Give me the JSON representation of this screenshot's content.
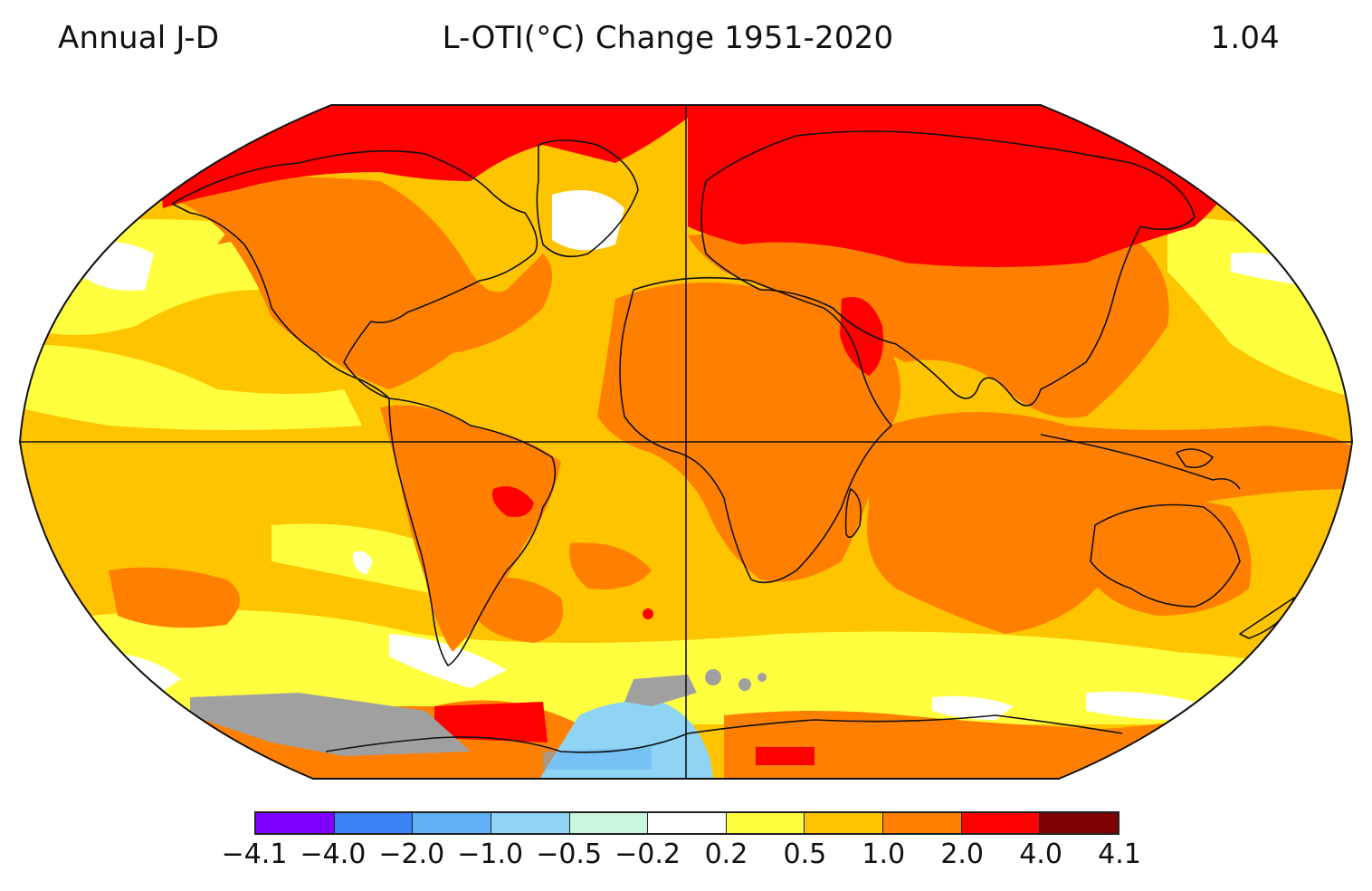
{
  "header": {
    "left": "Annual J-D",
    "center": "L-OTI(°C) Change 1951-2020",
    "right": "1.04"
  },
  "legend": {
    "ticks": [
      "−4.1",
      "−4.0",
      "−2.0",
      "−1.0",
      "−0.5",
      "−0.2",
      "0.2",
      "0.5",
      "1.0",
      "2.0",
      "4.0",
      "4.1"
    ],
    "colors": [
      "#8000ff",
      "#3b82f6",
      "#5fb0f5",
      "#8fd4f5",
      "#c8f5dc",
      "#ffffff",
      "#ffff40",
      "#ffc400",
      "#ff7f00",
      "#ff0000",
      "#7f0000"
    ]
  },
  "map": {
    "projection": "robinson",
    "missing_data_color": "#a0a0a0",
    "grid_lines": [
      "equator",
      "prime-meridian"
    ]
  }
}
